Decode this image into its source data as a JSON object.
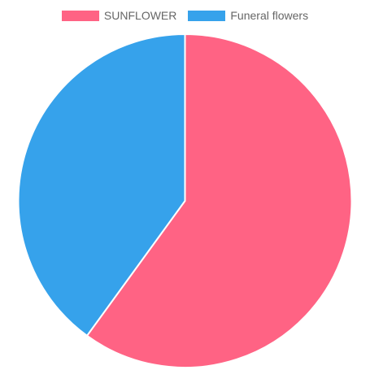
{
  "chart_data": {
    "type": "pie",
    "legend_position": "top",
    "series": [
      {
        "name": "SUNFLOWER",
        "value": 60,
        "color": "#ff6384"
      },
      {
        "name": "Funeral flowers",
        "value": 40,
        "color": "#36a2eb"
      }
    ],
    "slice_border_color": "#ffffff"
  }
}
